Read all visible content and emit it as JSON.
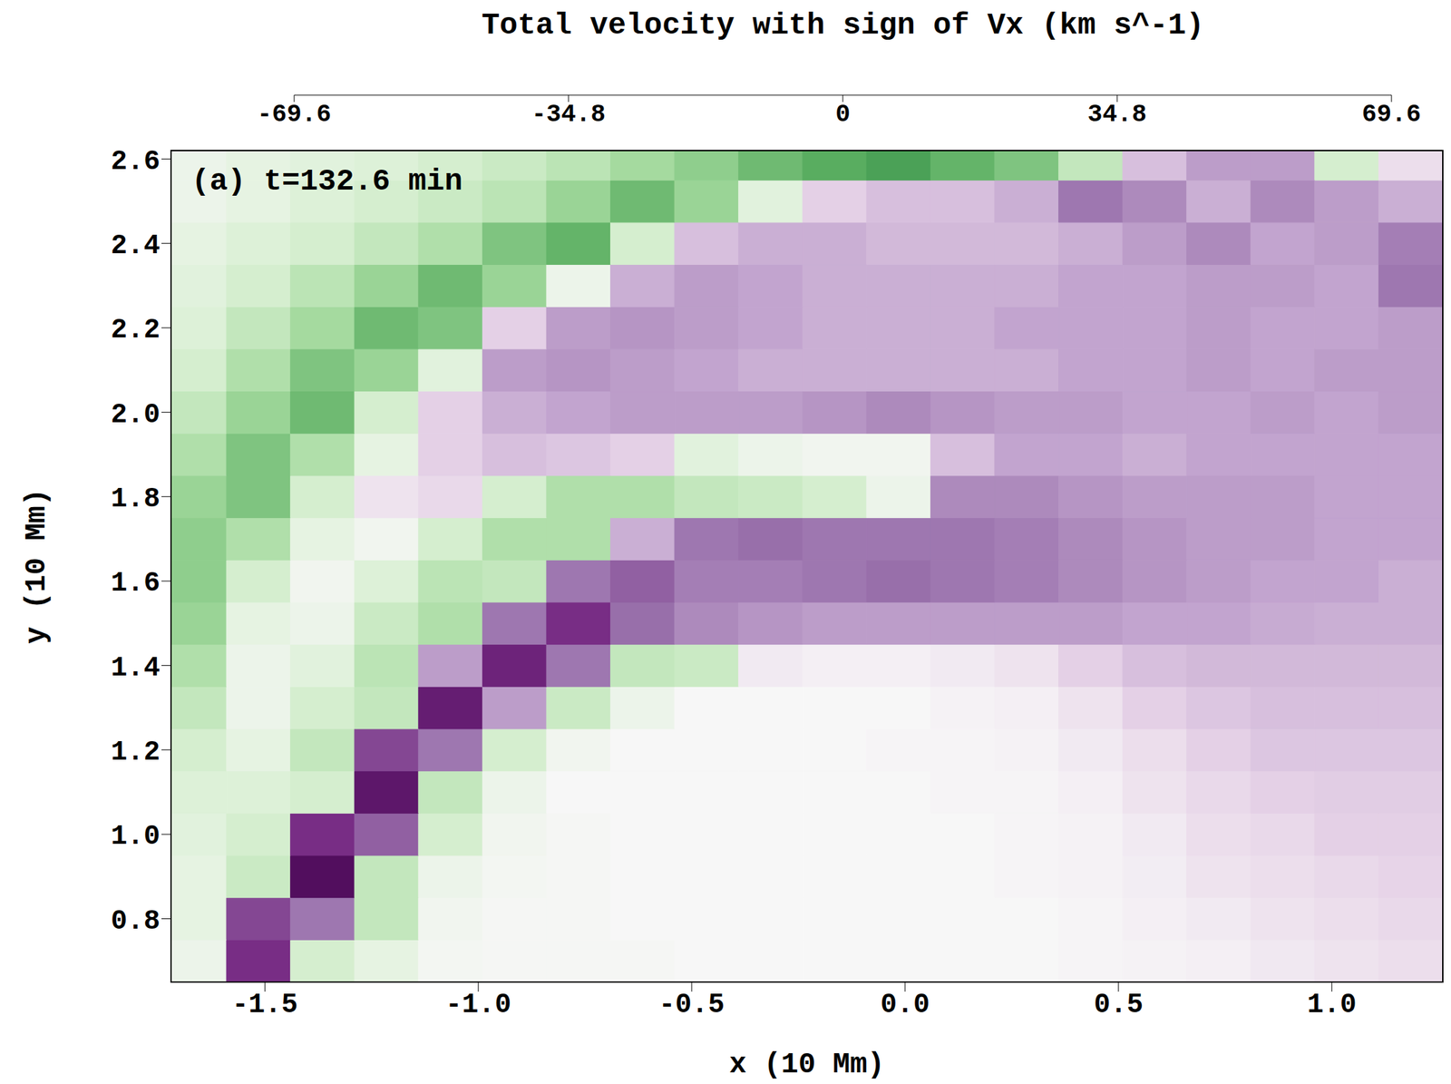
{
  "chart_data": {
    "type": "heatmap",
    "colorbar_label": "Total velocity with sign of Vx (km s^-1)",
    "annotation": "(a) t=132.6 min",
    "xlabel": "x (10 Mm)",
    "ylabel": "y (10 Mm)",
    "xlim": [
      -1.72,
      1.26
    ],
    "ylim": [
      0.65,
      2.62
    ],
    "xticks": [
      -1.5,
      {
        "value": -1.0,
        "label": "-1.0"
      },
      -0.5,
      {
        "value": 0,
        "label": "0.0"
      },
      0.5,
      {
        "value": 1.0,
        "label": "1.0"
      }
    ],
    "yticks": [
      0.8,
      {
        "value": 1.0,
        "label": "1.0"
      },
      1.2,
      1.4,
      1.6,
      1.8,
      {
        "value": 2.0,
        "label": "2.0"
      },
      2.2,
      2.4,
      2.6
    ],
    "colorbar_range": [
      -69.6,
      69.6
    ],
    "colorbar_ticks": [
      -69.6,
      -34.8,
      0,
      34.8,
      69.6
    ],
    "x_edges": [
      -1.74,
      -1.59,
      -1.44,
      -1.29,
      -1.14,
      -0.99,
      -0.84,
      -0.69,
      -0.54,
      -0.39,
      -0.24,
      -0.09,
      0.06,
      0.21,
      0.36,
      0.51,
      0.66,
      0.81,
      0.96,
      1.11,
      1.26
    ],
    "y_edges": [
      0.65,
      0.75,
      0.85,
      0.95,
      1.05,
      1.15,
      1.25,
      1.35,
      1.45,
      1.55,
      1.65,
      1.75,
      1.85,
      1.95,
      2.05,
      2.15,
      2.25,
      2.35,
      2.45,
      2.55,
      2.65
    ],
    "cells": [
      [
        5,
        -55,
        15,
        8,
        2,
        1,
        1,
        1,
        0,
        0,
        0,
        0,
        0,
        0,
        -1,
        -2,
        -3,
        -6,
        -8,
        -10
      ],
      [
        8,
        -50,
        -40,
        20,
        3,
        1,
        1,
        0,
        0,
        0,
        0,
        0,
        0,
        0,
        -1,
        -3,
        -5,
        -8,
        -10,
        -12
      ],
      [
        8,
        18,
        -65,
        20,
        5,
        2,
        1,
        0,
        0,
        0,
        0,
        0,
        0,
        -1,
        -2,
        -4,
        -8,
        -10,
        -12,
        -14
      ],
      [
        10,
        15,
        -55,
        -45,
        15,
        3,
        1,
        0,
        0,
        0,
        0,
        0,
        0,
        -1,
        -2,
        -5,
        -10,
        -12,
        -15,
        -15
      ],
      [
        12,
        12,
        15,
        -62,
        20,
        5,
        0,
        0,
        0,
        0,
        0,
        0,
        -1,
        -1,
        -3,
        -8,
        -12,
        -15,
        -16,
        -16
      ],
      [
        15,
        8,
        20,
        -50,
        -40,
        15,
        3,
        0,
        0,
        0,
        0,
        -1,
        -1,
        -2,
        -5,
        -10,
        -15,
        -18,
        -18,
        -18
      ],
      [
        20,
        5,
        15,
        20,
        -60,
        -30,
        18,
        5,
        0,
        0,
        0,
        0,
        -2,
        -3,
        -8,
        -15,
        -18,
        -20,
        -20,
        -20
      ],
      [
        25,
        5,
        10,
        22,
        -30,
        -58,
        -40,
        20,
        18,
        -5,
        -3,
        -3,
        -5,
        -8,
        -15,
        -20,
        -22,
        -22,
        -22,
        -22
      ],
      [
        30,
        8,
        5,
        18,
        25,
        -40,
        -55,
        -42,
        -35,
        -32,
        -30,
        -30,
        -30,
        -30,
        -30,
        -28,
        -28,
        -26,
        -25,
        -25
      ],
      [
        32,
        15,
        3,
        12,
        22,
        20,
        -40,
        -45,
        -38,
        -38,
        -40,
        -42,
        -40,
        -38,
        -35,
        -32,
        -30,
        -28,
        -28,
        -25
      ],
      [
        32,
        25,
        8,
        3,
        15,
        25,
        25,
        -25,
        -40,
        -42,
        -40,
        -40,
        -40,
        -38,
        -35,
        -32,
        -30,
        -30,
        -28,
        -28
      ],
      [
        30,
        35,
        15,
        -8,
        -12,
        15,
        25,
        25,
        20,
        18,
        15,
        5,
        -35,
        -35,
        -32,
        -30,
        -30,
        -30,
        -28,
        -28
      ],
      [
        25,
        35,
        25,
        8,
        -15,
        -20,
        -18,
        -15,
        10,
        5,
        3,
        3,
        -20,
        -28,
        -28,
        -25,
        -28,
        -28,
        -28,
        -28
      ],
      [
        20,
        30,
        38,
        15,
        -15,
        -25,
        -28,
        -30,
        -30,
        -30,
        -32,
        -35,
        -32,
        -30,
        -30,
        -28,
        -28,
        -30,
        -28,
        -30
      ],
      [
        15,
        25,
        35,
        30,
        10,
        -30,
        -32,
        -30,
        -28,
        -25,
        -25,
        -25,
        -25,
        -25,
        -28,
        -28,
        -30,
        -28,
        -30,
        -30
      ],
      [
        12,
        20,
        28,
        38,
        35,
        -15,
        -30,
        -32,
        -30,
        -28,
        -25,
        -25,
        -25,
        -28,
        -28,
        -28,
        -30,
        -28,
        -28,
        -30
      ],
      [
        10,
        15,
        22,
        30,
        38,
        30,
        5,
        -25,
        -30,
        -28,
        -25,
        -25,
        -25,
        -25,
        -28,
        -28,
        -30,
        -30,
        -28,
        -40
      ],
      [
        8,
        12,
        15,
        20,
        25,
        35,
        40,
        15,
        -20,
        -25,
        -25,
        -22,
        -22,
        -22,
        -25,
        -30,
        -35,
        -28,
        -30,
        -38
      ],
      [
        5,
        8,
        12,
        15,
        18,
        22,
        30,
        38,
        30,
        10,
        -15,
        -20,
        -20,
        -25,
        -40,
        -35,
        -25,
        -35,
        -30,
        -25
      ],
      [
        5,
        8,
        10,
        12,
        15,
        18,
        22,
        28,
        32,
        38,
        42,
        45,
        40,
        35,
        20,
        -20,
        -30,
        -30,
        15,
        -10
      ]
    ]
  }
}
